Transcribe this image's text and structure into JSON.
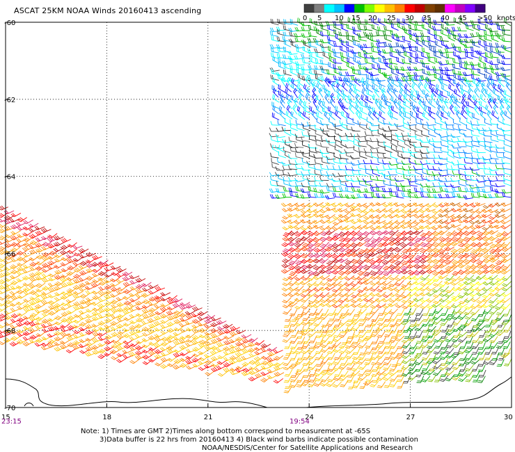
{
  "title": "ASCAT 25KM NOAA Winds 20160413 ascending",
  "colorbar": {
    "labels": [
      "0",
      "5",
      "10",
      "15",
      "20",
      "25",
      "30",
      "35",
      "40",
      "45",
      ">50",
      "knots"
    ],
    "colors": [
      "#404040",
      "#808080",
      "#00ffff",
      "#00c0ff",
      "#0000ff",
      "#00c000",
      "#80ff00",
      "#ffff00",
      "#ffc000",
      "#ff8000",
      "#ff0000",
      "#c00000",
      "#804000",
      "#603000",
      "#ff00ff",
      "#c000c0",
      "#8000ff",
      "#400080"
    ]
  },
  "axes": {
    "lat_labels": [
      "-60",
      "-62",
      "-64",
      "-66",
      "-68",
      "-70"
    ],
    "lon_labels": [
      "15",
      "18",
      "21",
      "24",
      "27",
      "30"
    ]
  },
  "times": {
    "left": "23:15",
    "mid": "19:54"
  },
  "notes": {
    "line1": "Note: 1) Times are GMT 2)Times along bottom correspond to measurement at -65S",
    "line2": "3)Data buffer is 22 hrs from 20160413 4) Black wind barbs indicate possible contamination",
    "line3": "NOAA/NESDIS/Center for Satellite Applications and Research"
  }
}
